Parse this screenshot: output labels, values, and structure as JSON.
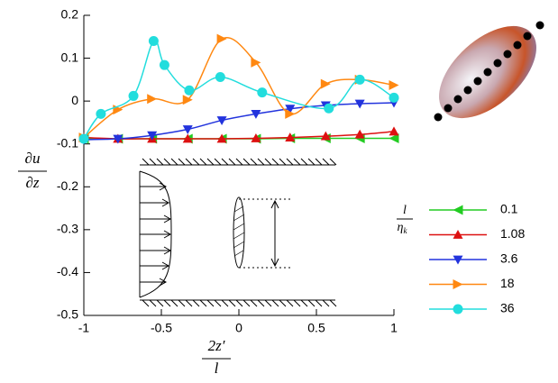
{
  "chart_data": {
    "type": "line",
    "xlabel": {
      "numerator": "2z′",
      "denominator": "l"
    },
    "ylabel": {
      "numerator": "∂u",
      "denominator": "∂z"
    },
    "legend_title": {
      "numerator": "l",
      "denominator": "η",
      "subscript": "k"
    },
    "xlim": [
      -1,
      1
    ],
    "xticks": [
      -1,
      -0.5,
      0,
      0.5,
      1
    ],
    "ylim": [
      -0.5,
      0.2
    ],
    "yticks": [
      0.2,
      0.1,
      0,
      -0.1,
      -0.2,
      -0.3,
      -0.4,
      -0.5
    ],
    "legend": "right",
    "series": [
      {
        "name": "0.1",
        "color": "#22cc22",
        "marker": "triangle-left",
        "x": [
          -1,
          -0.78,
          -0.56,
          -0.33,
          -0.11,
          0.11,
          0.33,
          0.56,
          0.78,
          1
        ],
        "values": [
          -0.088,
          -0.088,
          -0.088,
          -0.088,
          -0.088,
          -0.088,
          -0.087,
          -0.087,
          -0.087,
          -0.087
        ]
      },
      {
        "name": "1.08",
        "color": "#dd1111",
        "marker": "triangle-up",
        "x": [
          -1,
          -0.78,
          -0.56,
          -0.33,
          -0.11,
          0.11,
          0.33,
          0.56,
          0.78,
          1
        ],
        "values": [
          -0.085,
          -0.088,
          -0.088,
          -0.088,
          -0.088,
          -0.087,
          -0.085,
          -0.082,
          -0.078,
          -0.071
        ]
      },
      {
        "name": "3.6",
        "color": "#2233dd",
        "marker": "triangle-down",
        "x": [
          -1,
          -0.78,
          -0.56,
          -0.33,
          -0.11,
          0.11,
          0.33,
          0.56,
          0.78,
          1
        ],
        "values": [
          -0.09,
          -0.088,
          -0.08,
          -0.066,
          -0.045,
          -0.03,
          -0.018,
          -0.01,
          -0.006,
          -0.004
        ]
      },
      {
        "name": "18",
        "color": "#ff8811",
        "marker": "triangle-right",
        "x": [
          -1,
          -0.78,
          -0.56,
          -0.33,
          -0.11,
          0.11,
          0.33,
          0.56,
          0.78,
          1
        ],
        "values": [
          -0.085,
          -0.02,
          0.005,
          0.003,
          0.145,
          0.09,
          -0.03,
          0.04,
          0.05,
          0.037
        ]
      },
      {
        "name": "36",
        "color": "#22dddd",
        "marker": "circle",
        "x": [
          -1,
          -0.89,
          -0.68,
          -0.55,
          -0.48,
          -0.32,
          -0.12,
          0.15,
          0.58,
          0.78,
          1
        ],
        "values": [
          -0.088,
          -0.03,
          0.012,
          0.14,
          0.084,
          0.025,
          0.056,
          0.02,
          -0.017,
          0.05,
          0.008
        ]
      }
    ]
  }
}
